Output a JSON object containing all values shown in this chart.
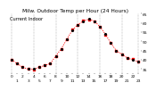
{
  "title": "Milw. Outdoor Temp per Hour (24 Hours)",
  "subtitle": "Current Indoor",
  "hours": [
    0,
    1,
    2,
    3,
    4,
    5,
    6,
    7,
    8,
    9,
    10,
    11,
    12,
    13,
    14,
    15,
    16,
    17,
    18,
    19,
    20,
    21,
    22,
    23
  ],
  "temps": [
    40,
    38,
    36,
    35,
    35,
    36,
    37,
    38,
    42,
    46,
    51,
    56,
    59,
    61,
    62,
    61,
    58,
    54,
    49,
    45,
    43,
    41,
    40,
    39
  ],
  "ylim": [
    33,
    65
  ],
  "yticks": [
    35,
    40,
    45,
    50,
    55,
    60,
    65
  ],
  "ytick_labels": [
    "35",
    "40",
    "45",
    "50",
    "55",
    "60",
    "65"
  ],
  "line_color": "#ff0000",
  "dot_color": "#000000",
  "grid_color": "#888888",
  "bg_color": "#ffffff",
  "text_color": "#000000",
  "title_fontsize": 4.2,
  "tick_fontsize": 3.2,
  "vline_positions": [
    0,
    4,
    8,
    12,
    16,
    20,
    23
  ]
}
